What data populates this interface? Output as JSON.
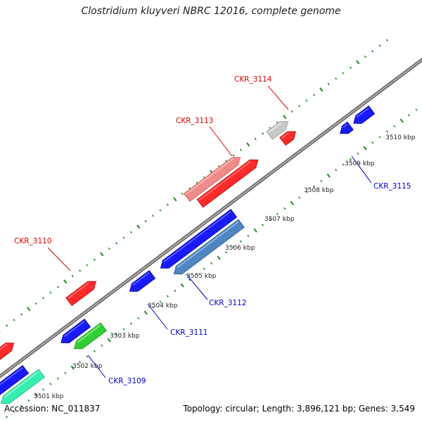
{
  "title": "Clostridium kluyveri NBRC 12016, complete genome",
  "footer": {
    "accession": "Accession: NC_011837",
    "summary": "Topology: circular; Length: 3,896,121 bp; Genes: 3,549"
  },
  "colors": {
    "background": "#ffffff",
    "backbone": "#808080",
    "tick": "#1e8a1e",
    "label_forward": "#dd0000",
    "label_reverse": "#0000cc"
  },
  "scale": {
    "labels": [
      "3501 kbp",
      "3502 kbp",
      "3503 kbp",
      "3504 kbp",
      "3505 kbp",
      "3506 kbp",
      "3507 kbp",
      "3508 kbp",
      "3509 kbp",
      "3510 kbp"
    ]
  },
  "gene_labels": [
    "CKR_3110",
    "CKR_3113",
    "CKR_3114",
    "CKR_3109",
    "CKR_3111",
    "CKR_3112",
    "CKR_3115"
  ]
}
